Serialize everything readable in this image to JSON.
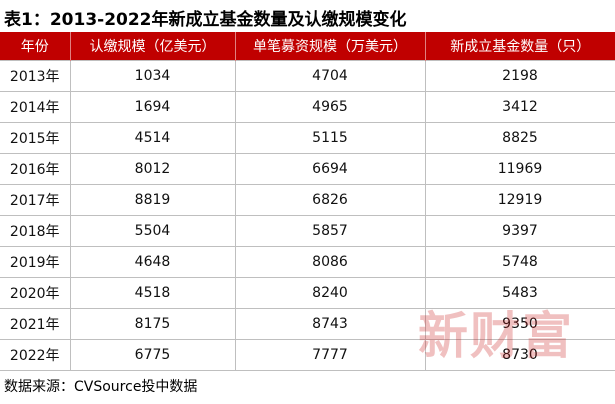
{
  "header": {
    "title": "表1：2013-2022年新成立基金数量及认缴规模变化"
  },
  "table": {
    "columns": [
      "年份",
      "认缴规模（亿美元）",
      "单笔募资规模（万美元）",
      "新成立基金数量（只）"
    ],
    "rows": [
      [
        "2013年",
        1034,
        4704,
        2198
      ],
      [
        "2014年",
        1694,
        4965,
        3412
      ],
      [
        "2015年",
        4514,
        5115,
        8825
      ],
      [
        "2016年",
        8012,
        6694,
        11969
      ],
      [
        "2017年",
        8819,
        6826,
        12919
      ],
      [
        "2018年",
        5504,
        5857,
        9397
      ],
      [
        "2019年",
        4648,
        8086,
        5748
      ],
      [
        "2020年",
        4518,
        8240,
        5483
      ],
      [
        "2021年",
        8175,
        8743,
        9350
      ],
      [
        "2022年",
        6775,
        7777,
        8730
      ]
    ]
  },
  "footer": {
    "source": "数据来源：CVSource投中数据"
  },
  "watermark": "新财富"
}
